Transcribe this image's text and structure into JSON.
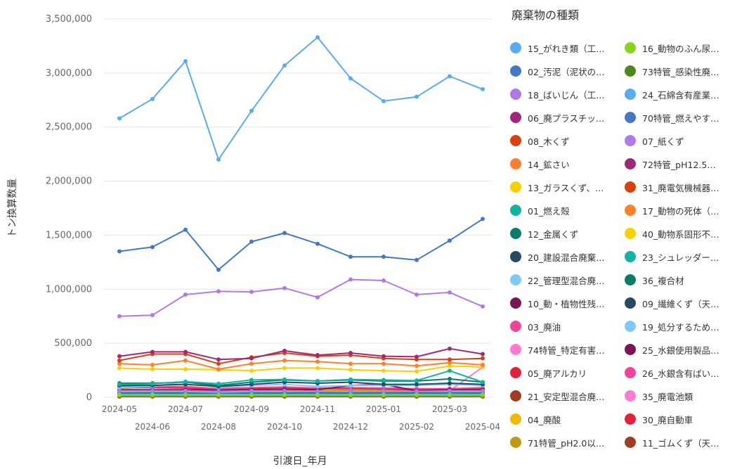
{
  "legend_title": "廃棄物の種類",
  "colors": [
    "#5aaaf0",
    "#88d41e",
    "#4478c4",
    "#4a8a1c",
    "#b07ae6",
    "#5aaaf0",
    "#a0287a",
    "#4478c4",
    "#d8400e",
    "#b07ae6",
    "#ff7f2e",
    "#a0287a",
    "#f8d000",
    "#d8400e",
    "#10b4a0",
    "#ff7f2e",
    "#0a7d6a",
    "#f8d000",
    "#244a64",
    "#10b4a0",
    "#80c8fa",
    "#0a7d6a",
    "#7a1654",
    "#244a64",
    "#f0449a",
    "#80c8fa",
    "#ff7ad2",
    "#7a1654",
    "#e0203c",
    "#f0449a",
    "#a03c24",
    "#ff7ad2",
    "#f0b800",
    "#e0203c",
    "#c09a10",
    "#a03c24"
  ],
  "chart_data": {
    "type": "line",
    "xlabel": "引渡日_年月",
    "ylabel": "トン換算数量",
    "ylim": [
      0,
      3500000
    ],
    "yticks": [
      "0",
      "500,000",
      "1,000,000",
      "1,500,000",
      "2,000,000",
      "2,500,000",
      "3,000,000",
      "3,500,000"
    ],
    "x": [
      "2024-05",
      "2024-06",
      "2024-07",
      "2024-08",
      "2024-09",
      "2024-10",
      "2024-11",
      "2024-12",
      "2025-01",
      "2025-02",
      "2025-03",
      "2025-04"
    ],
    "grid": true,
    "legend_position": "right",
    "series": [
      {
        "name": "15_がれき類（工…",
        "values": [
          2580000,
          2760000,
          3110000,
          2200000,
          2650000,
          3070000,
          3330000,
          2950000,
          2740000,
          2780000,
          2970000,
          2850000
        ]
      },
      {
        "name": "16_動物のふん尿…",
        "values": [
          20000,
          20000,
          20000,
          20000,
          20000,
          20000,
          20000,
          20000,
          20000,
          20000,
          20000,
          20000
        ]
      },
      {
        "name": "02_汚泥（泥状の…",
        "values": [
          1350000,
          1390000,
          1550000,
          1180000,
          1440000,
          1520000,
          1420000,
          1300000,
          1300000,
          1270000,
          1450000,
          1650000
        ]
      },
      {
        "name": "73特管_感染性廃…",
        "values": [
          15000,
          15000,
          15000,
          15000,
          15000,
          15000,
          15000,
          15000,
          15000,
          15000,
          15000,
          15000
        ]
      },
      {
        "name": "18_ばいじん（工…",
        "values": [
          750000,
          760000,
          950000,
          980000,
          975000,
          1010000,
          925000,
          1090000,
          1080000,
          950000,
          970000,
          840000
        ]
      },
      {
        "name": "24_石綿含有産業…",
        "values": [
          25000,
          25000,
          25000,
          25000,
          25000,
          25000,
          25000,
          25000,
          25000,
          25000,
          25000,
          25000
        ]
      },
      {
        "name": "06_廃プラスチッ…",
        "values": [
          380000,
          420000,
          420000,
          350000,
          360000,
          430000,
          390000,
          410000,
          380000,
          375000,
          450000,
          400000
        ]
      },
      {
        "name": "70特管_燃えやす…",
        "values": [
          10000,
          10000,
          10000,
          10000,
          10000,
          10000,
          10000,
          10000,
          10000,
          10000,
          10000,
          10000
        ]
      },
      {
        "name": "08_木くず",
        "values": [
          340000,
          400000,
          400000,
          310000,
          370000,
          410000,
          380000,
          390000,
          360000,
          350000,
          350000,
          360000
        ]
      },
      {
        "name": "07_紙くず",
        "values": [
          60000,
          60000,
          60000,
          55000,
          60000,
          60000,
          55000,
          60000,
          55000,
          55000,
          60000,
          60000
        ]
      },
      {
        "name": "14_鉱さい",
        "values": [
          310000,
          300000,
          340000,
          260000,
          310000,
          340000,
          330000,
          310000,
          310000,
          290000,
          320000,
          300000
        ]
      },
      {
        "name": "72特管_pH12.5…",
        "values": [
          20000,
          20000,
          20000,
          20000,
          20000,
          20000,
          20000,
          20000,
          20000,
          20000,
          20000,
          20000
        ]
      },
      {
        "name": "13_ガラスくず、…",
        "values": [
          270000,
          260000,
          260000,
          255000,
          245000,
          270000,
          270000,
          255000,
          245000,
          240000,
          290000,
          280000
        ]
      },
      {
        "name": "31_廃電気機械器…",
        "values": [
          10000,
          10000,
          10000,
          10000,
          10000,
          10000,
          10000,
          10000,
          10000,
          10000,
          10000,
          10000
        ]
      },
      {
        "name": "01_燃え殻",
        "values": [
          120000,
          125000,
          145000,
          125000,
          160000,
          165000,
          150000,
          165000,
          160000,
          155000,
          245000,
          140000
        ]
      },
      {
        "name": "17_動物の死体（…",
        "values": [
          5000,
          5000,
          5000,
          5000,
          5000,
          5000,
          5000,
          5000,
          5000,
          5000,
          5000,
          5000
        ]
      },
      {
        "name": "12_金属くず",
        "values": [
          130000,
          130000,
          140000,
          110000,
          140000,
          160000,
          150000,
          160000,
          150000,
          150000,
          170000,
          140000
        ]
      },
      {
        "name": "40_動物系固形不…",
        "values": [
          8000,
          8000,
          8000,
          8000,
          8000,
          8000,
          8000,
          8000,
          8000,
          8000,
          8000,
          8000
        ]
      },
      {
        "name": "20_建設混合廃棄…",
        "values": [
          110000,
          110000,
          120000,
          100000,
          120000,
          140000,
          130000,
          140000,
          120000,
          120000,
          130000,
          120000
        ]
      },
      {
        "name": "23_シュレッダー…",
        "values": [
          30000,
          30000,
          30000,
          30000,
          30000,
          30000,
          30000,
          30000,
          30000,
          30000,
          30000,
          30000
        ]
      },
      {
        "name": "22_管理型混合廃…",
        "values": [
          90000,
          100000,
          145000,
          90000,
          110000,
          120000,
          100000,
          110000,
          110000,
          110000,
          120000,
          110000
        ]
      },
      {
        "name": "36_複合材",
        "values": [
          40000,
          40000,
          40000,
          35000,
          40000,
          40000,
          40000,
          40000,
          40000,
          40000,
          40000,
          40000
        ]
      },
      {
        "name": "10_動・植物性残…",
        "values": [
          70000,
          70000,
          70000,
          65000,
          70000,
          75000,
          70000,
          110000,
          120000,
          60000,
          70000,
          70000
        ]
      },
      {
        "name": "09_繊維くず（天…",
        "values": [
          30000,
          30000,
          30000,
          30000,
          30000,
          30000,
          30000,
          30000,
          30000,
          30000,
          30000,
          30000
        ]
      },
      {
        "name": "03_廃油",
        "values": [
          100000,
          95000,
          100000,
          80000,
          90000,
          95000,
          85000,
          90000,
          85000,
          80000,
          80000,
          90000
        ]
      },
      {
        "name": "19_処分するため…",
        "values": [
          50000,
          50000,
          50000,
          45000,
          50000,
          50000,
          50000,
          50000,
          50000,
          50000,
          50000,
          50000
        ]
      },
      {
        "name": "74特管_特定有害…",
        "values": [
          20000,
          20000,
          20000,
          20000,
          20000,
          20000,
          20000,
          20000,
          20000,
          20000,
          60000,
          280000
        ]
      },
      {
        "name": "25_水銀使用製品…",
        "values": [
          15000,
          15000,
          15000,
          15000,
          15000,
          15000,
          15000,
          15000,
          15000,
          15000,
          15000,
          15000
        ]
      },
      {
        "name": "05_廃アルカリ",
        "values": [
          90000,
          90000,
          85000,
          70000,
          80000,
          90000,
          80000,
          80000,
          75000,
          70000,
          80000,
          75000
        ]
      },
      {
        "name": "26_水銀含有ばい…",
        "values": [
          5000,
          5000,
          5000,
          5000,
          5000,
          5000,
          5000,
          5000,
          5000,
          5000,
          5000,
          5000
        ]
      },
      {
        "name": "21_安定型混合廃…",
        "values": [
          45000,
          45000,
          50000,
          40000,
          45000,
          50000,
          45000,
          50000,
          45000,
          45000,
          50000,
          45000
        ]
      },
      {
        "name": "35_廃電池類",
        "values": [
          5000,
          5000,
          5000,
          5000,
          5000,
          5000,
          5000,
          5000,
          5000,
          5000,
          5000,
          5000
        ]
      },
      {
        "name": "04_廃酸",
        "values": [
          80000,
          60000,
          70000,
          60000,
          65000,
          70000,
          65000,
          70000,
          65000,
          60000,
          65000,
          60000
        ]
      },
      {
        "name": "30_廃自動車",
        "values": [
          10000,
          10000,
          10000,
          10000,
          10000,
          10000,
          10000,
          10000,
          10000,
          10000,
          10000,
          10000
        ]
      },
      {
        "name": "71特管_pH2.0以…",
        "values": [
          15000,
          15000,
          15000,
          15000,
          15000,
          15000,
          15000,
          15000,
          15000,
          15000,
          15000,
          15000
        ]
      },
      {
        "name": "11_ゴムくず（天…",
        "values": [
          10000,
          10000,
          10000,
          10000,
          10000,
          10000,
          10000,
          10000,
          10000,
          10000,
          10000,
          10000
        ]
      }
    ]
  }
}
